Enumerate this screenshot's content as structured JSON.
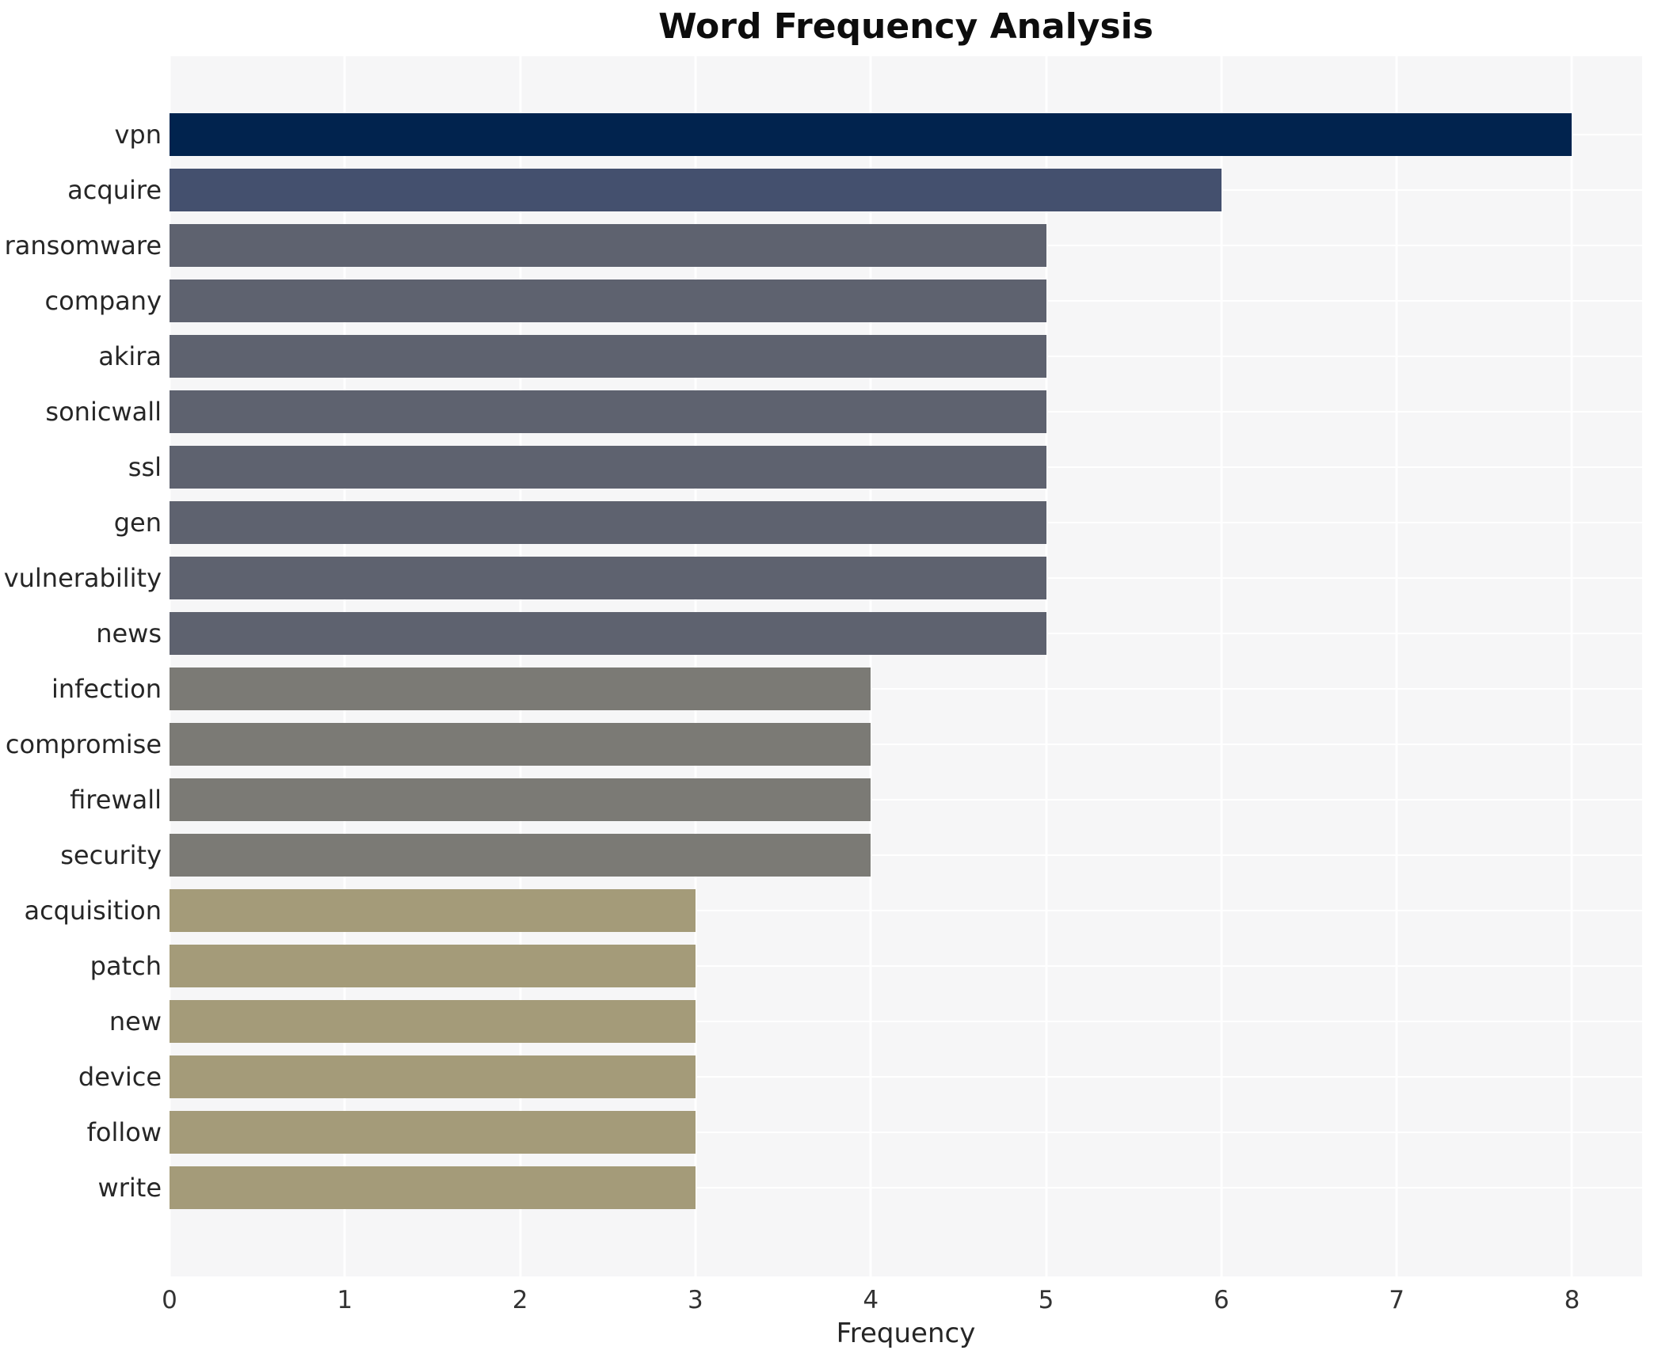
{
  "figure": {
    "title": "Word Frequency Analysis",
    "xlabel": "Frequency"
  },
  "chart_data": {
    "type": "bar",
    "orientation": "horizontal",
    "title": "Word Frequency Analysis",
    "xlabel": "Frequency",
    "ylabel": "",
    "xlim": [
      0,
      8.4
    ],
    "xticks": [
      0,
      1,
      2,
      3,
      4,
      5,
      6,
      7,
      8
    ],
    "grid": true,
    "legend": "none",
    "plot_background": "#f6f6f7",
    "grid_color": "#ffffff",
    "categories": [
      "vpn",
      "acquire",
      "ransomware",
      "company",
      "akira",
      "sonicwall",
      "ssl",
      "gen",
      "vulnerability",
      "news",
      "infection",
      "compromise",
      "firewall",
      "security",
      "acquisition",
      "patch",
      "new",
      "device",
      "follow",
      "write"
    ],
    "values": [
      8,
      6,
      5,
      5,
      5,
      5,
      5,
      5,
      5,
      5,
      4,
      4,
      4,
      4,
      3,
      3,
      3,
      3,
      3,
      3
    ],
    "bar_colors": [
      "#01234e",
      "#44506e",
      "#5e626f",
      "#5e626f",
      "#5e626f",
      "#5e626f",
      "#5e626f",
      "#5e626f",
      "#5e626f",
      "#5e626f",
      "#7b7a75",
      "#7b7a75",
      "#7b7a75",
      "#7b7a75",
      "#a49b79",
      "#a49b79",
      "#a49b79",
      "#a49b79",
      "#a49b79",
      "#a49b79"
    ]
  }
}
